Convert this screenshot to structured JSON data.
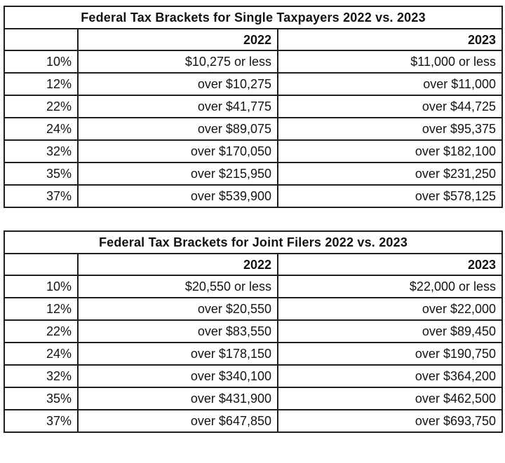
{
  "page": {
    "background_color": "#ffffff",
    "border_color": "#1e1e1e",
    "text_color": "#131313"
  },
  "tables": [
    {
      "title": "Federal Tax Brackets for Single Taxpayers 2022 vs. 2023",
      "columns": [
        "",
        "2022",
        "2023"
      ],
      "rows": [
        {
          "rate": "10%",
          "y2022": "$10,275 or less",
          "y2023": "$11,000 or less"
        },
        {
          "rate": "12%",
          "y2022": "over $10,275",
          "y2023": "over $11,000"
        },
        {
          "rate": "22%",
          "y2022": "over $41,775",
          "y2023": "over $44,725"
        },
        {
          "rate": "24%",
          "y2022": "over $89,075",
          "y2023": "over $95,375"
        },
        {
          "rate": "32%",
          "y2022": "over $170,050",
          "y2023": "over $182,100"
        },
        {
          "rate": "35%",
          "y2022": "over $215,950",
          "y2023": "over $231,250"
        },
        {
          "rate": "37%",
          "y2022": "over $539,900",
          "y2023": "over $578,125"
        }
      ]
    },
    {
      "title": "Federal Tax Brackets for Joint Filers 2022 vs. 2023",
      "columns": [
        "",
        "2022",
        "2023"
      ],
      "rows": [
        {
          "rate": "10%",
          "y2022": "$20,550 or less",
          "y2023": "$22,000 or less"
        },
        {
          "rate": "12%",
          "y2022": "over $20,550",
          "y2023": "over $22,000"
        },
        {
          "rate": "22%",
          "y2022": "over $83,550",
          "y2023": "over $89,450"
        },
        {
          "rate": "24%",
          "y2022": "over $178,150",
          "y2023": "over $190,750"
        },
        {
          "rate": "32%",
          "y2022": "over $340,100",
          "y2023": "over $364,200"
        },
        {
          "rate": "35%",
          "y2022": "over $431,900",
          "y2023": "over $462,500"
        },
        {
          "rate": "37%",
          "y2022": "over $647,850",
          "y2023": "over $693,750"
        }
      ]
    }
  ]
}
